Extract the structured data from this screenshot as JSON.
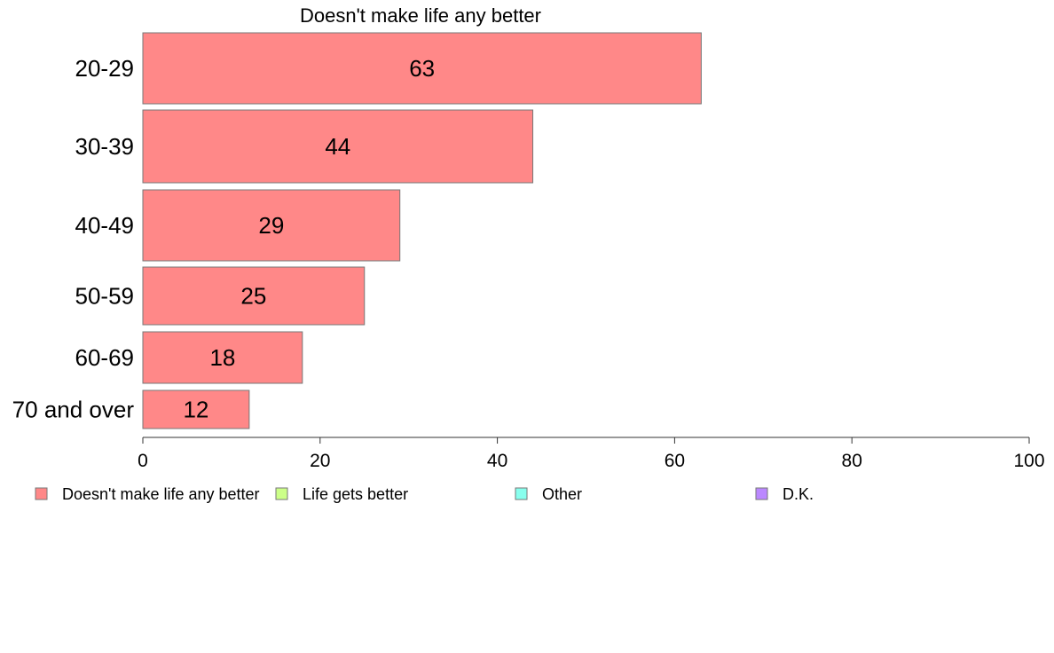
{
  "chart_data": {
    "type": "bar",
    "orientation": "horizontal",
    "title": "Doesn't make life any better",
    "categories": [
      "20-29",
      "30-39",
      "40-49",
      "50-59",
      "60-69",
      "70 and over"
    ],
    "series": [
      {
        "name": "Doesn't make life any better",
        "values": [
          63,
          44,
          29,
          25,
          18,
          12
        ]
      }
    ],
    "data_labels": [
      "63",
      "44",
      "29",
      "25",
      "18",
      "12"
    ],
    "xlim": [
      0,
      100
    ],
    "x_ticks": [
      0,
      20,
      40,
      60,
      80,
      100
    ],
    "x_tick_labels": [
      "0",
      "20",
      "40",
      "60",
      "80",
      "100"
    ],
    "grid": false,
    "legend": {
      "placement": "bottom",
      "entries": [
        {
          "label": "Doesn't make life any better",
          "color": "#ff8888"
        },
        {
          "label": "Life gets better",
          "color": "#ccff88"
        },
        {
          "label": "Other",
          "color": "#88ffee"
        },
        {
          "label": "D.K.",
          "color": "#bb88ff"
        }
      ]
    },
    "colors": {
      "bar": "#ff8888",
      "bar_border": "#777777",
      "axis": "#333333"
    }
  }
}
